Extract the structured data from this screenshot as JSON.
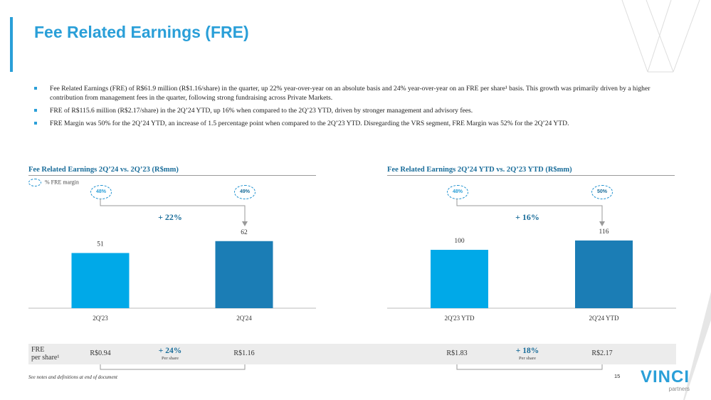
{
  "page": {
    "title": "Fee Related Earnings (FRE)",
    "page_number": "15",
    "footnote": "See notes and definitions at end of document"
  },
  "bullets": [
    "Fee Related Earnings (FRE) of R$61.9 million (R$1.16/share) in the quarter, up 22% year-over-year on an absolute basis and 24% year-over-year on an FRE per share¹ basis. This growth was primarily driven by a higher contribution from management fees in the quarter, following strong fundraising across Private Markets.",
    "FRE of R$115.6 million (R$2.17/share) in the 2Q’24 YTD, up 16% when compared to the 2Q’23 YTD, driven by stronger management and advisory fees.",
    "FRE Margin was 50% for the 2Q’24 YTD, an increase of 1.5 percentage point when compared to the 2Q’23 YTD. Disregarding the VRS segment, FRE Margin was 52% for the 2Q’24 YTD."
  ],
  "legend": {
    "label": "% FRE margin"
  },
  "left_section": {
    "title": "Fee Related Earnings 2Q’24 vs. 2Q’23 (R$mm)",
    "growth": "+ 22%",
    "margins": [
      "48%",
      "49%"
    ],
    "per_share": {
      "label_line1": "FRE",
      "label_line2": "per share¹",
      "values": [
        "R$0.94",
        "R$1.16"
      ],
      "growth": "+ 24%",
      "growth_sub": "Per share"
    }
  },
  "right_section": {
    "title": "Fee Related Earnings 2Q’24 YTD vs. 2Q’23 YTD (R$mm)",
    "growth": "+ 16%",
    "margins": [
      "48%",
      "50%"
    ],
    "per_share": {
      "values": [
        "R$1.83",
        "R$2.17"
      ],
      "growth": "+ 18%",
      "growth_sub": "Per share"
    }
  },
  "chart_data": [
    {
      "type": "bar",
      "categories": [
        "2Q'23",
        "2Q'24"
      ],
      "values": [
        51,
        62
      ],
      "title": "Fee Related Earnings 2Q’24 vs. 2Q’23 (R$mm)",
      "colors": [
        "#00a9e8",
        "#1b7db5"
      ]
    },
    {
      "type": "bar",
      "categories": [
        "2Q'23 YTD",
        "2Q'24 YTD"
      ],
      "values": [
        100,
        116
      ],
      "title": "Fee Related Earnings 2Q’24 YTD vs. 2Q’23 YTD (R$mm)",
      "colors": [
        "#00a9e8",
        "#1b7db5"
      ]
    }
  ],
  "logo": {
    "word": "VINCI",
    "sub": "partners"
  },
  "colors": {
    "accent": "#2a9fd8",
    "dark_blue": "#1a6d9a",
    "bar_light": "#00a9e8",
    "bar_dark": "#1b7db5"
  }
}
